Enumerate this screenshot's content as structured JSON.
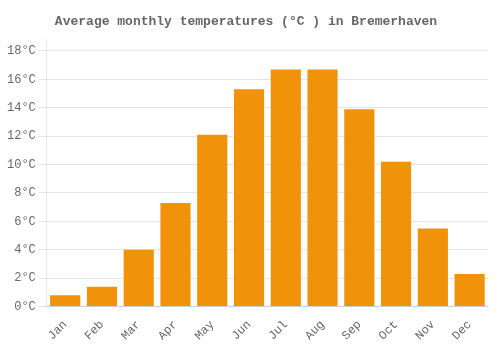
{
  "chart_data": {
    "type": "bar",
    "title": "Average monthly temperatures (°C ) in Bremerhaven",
    "categories": [
      "Jan",
      "Feb",
      "Mar",
      "Apr",
      "May",
      "Jun",
      "Jul",
      "Aug",
      "Sep",
      "Oct",
      "Nov",
      "Dec"
    ],
    "values": [
      0.8,
      1.4,
      4.0,
      7.3,
      12.1,
      15.3,
      16.7,
      16.7,
      13.9,
      10.2,
      5.5,
      2.3
    ],
    "color": "#F0920A",
    "ylim": [
      0,
      18.8
    ],
    "yticks": [
      {
        "value": 0,
        "label": "0°C"
      },
      {
        "value": 2,
        "label": "2°C"
      },
      {
        "value": 4,
        "label": "4°C"
      },
      {
        "value": 6,
        "label": "6°C"
      },
      {
        "value": 8,
        "label": "8°C"
      },
      {
        "value": 10,
        "label": "10°C"
      },
      {
        "value": 12,
        "label": "12°C"
      },
      {
        "value": 14,
        "label": "14°C"
      },
      {
        "value": 16,
        "label": "16°C"
      },
      {
        "value": 18,
        "label": "18°C"
      }
    ],
    "grid": true
  }
}
